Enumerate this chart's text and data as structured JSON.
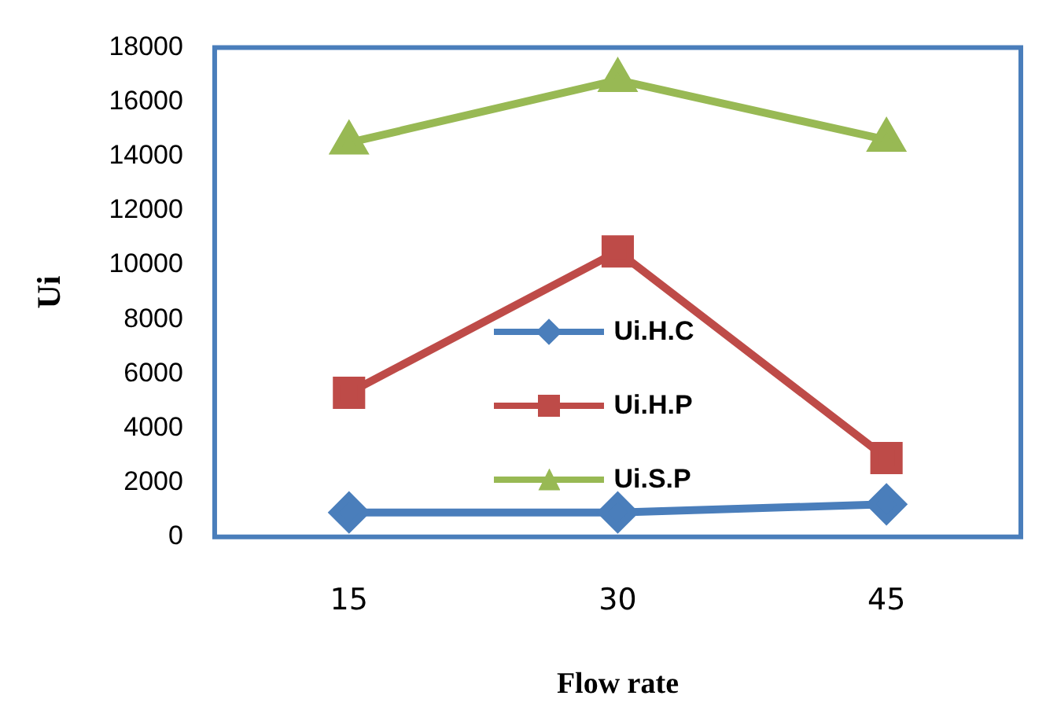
{
  "chart_data": {
    "type": "line",
    "xlabel": "Flow rate",
    "ylabel": "Ui",
    "categories": [
      "15",
      "30",
      "45"
    ],
    "series": [
      {
        "name": "Ui.H.C",
        "color": "#4a7ebb",
        "marker": "diamond",
        "values": [
          900,
          900,
          1200
        ]
      },
      {
        "name": "Ui.H.P",
        "color": "#be4b48",
        "marker": "square",
        "values": [
          5300,
          10500,
          2900
        ]
      },
      {
        "name": "Ui.S.P",
        "color": "#98b954",
        "marker": "triangle",
        "values": [
          14500,
          16800,
          14600
        ]
      }
    ],
    "ylim": [
      0,
      18000
    ],
    "yticks": [
      0,
      2000,
      4000,
      6000,
      8000,
      10000,
      12000,
      14000,
      16000,
      18000
    ],
    "grid": false,
    "legend": "center",
    "line_style": "solid"
  }
}
